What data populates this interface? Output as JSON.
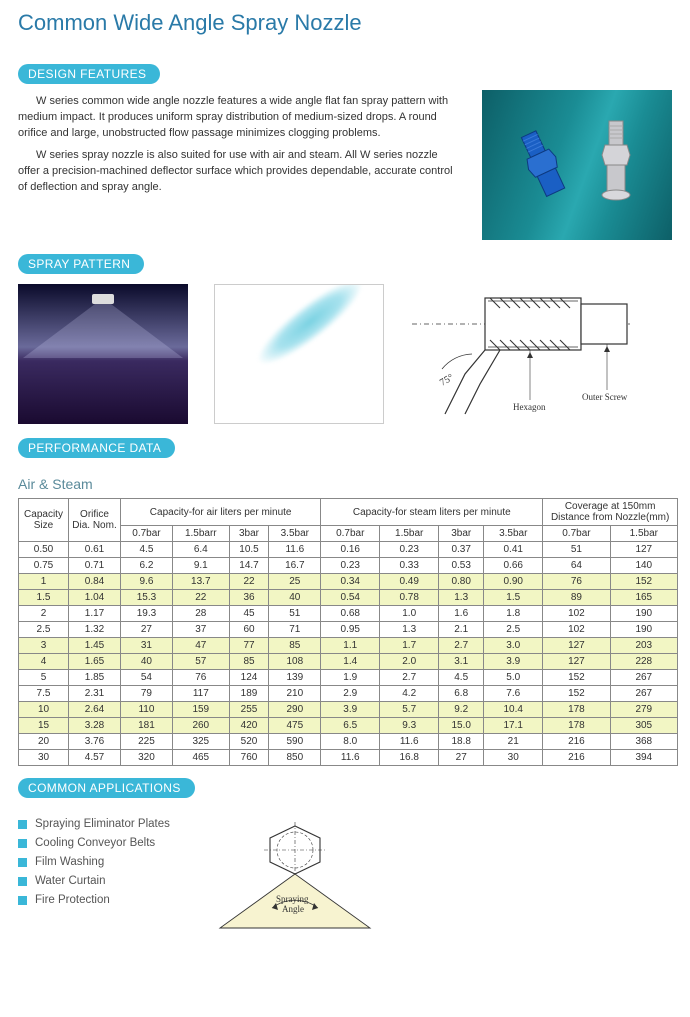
{
  "title": "Common Wide Angle Spray Nozzle",
  "sections": {
    "design": "DESIGN FEATURES",
    "spray": "SPRAY PATTERN",
    "perf": "PERFORMANCE DATA",
    "apps": "COMMON APPLICATIONS"
  },
  "design_text": {
    "p1": "W series common wide angle nozzle features a wide angle flat fan spray pattern with medium impact. It produces uniform spray distribution of medium-sized drops. A round orifice and large, unobstructed flow passage minimizes clogging problems.",
    "p2": "W series spray nozzle is also suited for use with air and steam. All W series nozzle offer a precision-machined deflector surface which provides dependable, accurate control of deflection and spray angle."
  },
  "diagram_labels": {
    "angle": "75°",
    "hexagon": "Hexagon",
    "outer": "Outer Screw",
    "spray_angle_top": "Spraying",
    "spray_angle_bot": "Angle"
  },
  "table": {
    "subhead": "Air & Steam",
    "group_headers": [
      "Capacity Size",
      "Orifice Dia. Nom.",
      "Capacity-for air  liters per minute",
      "Capacity-for steam  liters per minute",
      "Coverage at 150mm Distance from Nozzle(mm)"
    ],
    "pressure_cols": [
      "0.7bar",
      "1.5barr",
      "3bar",
      "3.5bar",
      "0.7bar",
      "1.5bar",
      "3bar",
      "3.5bar",
      "0.7bar",
      "1.5bar"
    ],
    "highlight_color": "#f2f6c4",
    "border_color": "#888888",
    "rows": [
      {
        "hl": false,
        "c": [
          "0.50",
          "0.61",
          "4.5",
          "6.4",
          "10.5",
          "11.6",
          "0.16",
          "0.23",
          "0.37",
          "0.41",
          "51",
          "127"
        ]
      },
      {
        "hl": false,
        "c": [
          "0.75",
          "0.71",
          "6.2",
          "9.1",
          "14.7",
          "16.7",
          "0.23",
          "0.33",
          "0.53",
          "0.66",
          "64",
          "140"
        ]
      },
      {
        "hl": true,
        "c": [
          "1",
          "0.84",
          "9.6",
          "13.7",
          "22",
          "25",
          "0.34",
          "0.49",
          "0.80",
          "0.90",
          "76",
          "152"
        ]
      },
      {
        "hl": true,
        "c": [
          "1.5",
          "1.04",
          "15.3",
          "22",
          "36",
          "40",
          "0.54",
          "0.78",
          "1.3",
          "1.5",
          "89",
          "165"
        ]
      },
      {
        "hl": false,
        "c": [
          "2",
          "1.17",
          "19.3",
          "28",
          "45",
          "51",
          "0.68",
          "1.0",
          "1.6",
          "1.8",
          "102",
          "190"
        ]
      },
      {
        "hl": false,
        "c": [
          "2.5",
          "1.32",
          "27",
          "37",
          "60",
          "71",
          "0.95",
          "1.3",
          "2.1",
          "2.5",
          "102",
          "190"
        ]
      },
      {
        "hl": true,
        "c": [
          "3",
          "1.45",
          "31",
          "47",
          "77",
          "85",
          "1.1",
          "1.7",
          "2.7",
          "3.0",
          "127",
          "203"
        ]
      },
      {
        "hl": true,
        "c": [
          "4",
          "1.65",
          "40",
          "57",
          "85",
          "108",
          "1.4",
          "2.0",
          "3.1",
          "3.9",
          "127",
          "228"
        ]
      },
      {
        "hl": false,
        "c": [
          "5",
          "1.85",
          "54",
          "76",
          "124",
          "139",
          "1.9",
          "2.7",
          "4.5",
          "5.0",
          "152",
          "267"
        ]
      },
      {
        "hl": false,
        "c": [
          "7.5",
          "2.31",
          "79",
          "117",
          "189",
          "210",
          "2.9",
          "4.2",
          "6.8",
          "7.6",
          "152",
          "267"
        ]
      },
      {
        "hl": true,
        "c": [
          "10",
          "2.64",
          "110",
          "159",
          "255",
          "290",
          "3.9",
          "5.7",
          "9.2",
          "10.4",
          "178",
          "279"
        ]
      },
      {
        "hl": true,
        "c": [
          "15",
          "3.28",
          "181",
          "260",
          "420",
          "475",
          "6.5",
          "9.3",
          "15.0",
          "17.1",
          "178",
          "305"
        ]
      },
      {
        "hl": false,
        "c": [
          "20",
          "3.76",
          "225",
          "325",
          "520",
          "590",
          "8.0",
          "11.6",
          "18.8",
          "21",
          "216",
          "368"
        ]
      },
      {
        "hl": false,
        "c": [
          "30",
          "4.57",
          "320",
          "465",
          "760",
          "850",
          "11.6",
          "16.8",
          "27",
          "30",
          "216",
          "394"
        ]
      }
    ]
  },
  "applications": [
    "Spraying Eliminator Plates",
    "Cooling Conveyor Belts",
    "Film Washing",
    "Water Curtain",
    "Fire Protection"
  ],
  "colors": {
    "title": "#2a7aa8",
    "pill_bg": "#3ab7d8",
    "bullet": "#3ab7d8",
    "nozzle_blue": "#1a5fc4",
    "nozzle_silver": "#c8c8cc"
  }
}
